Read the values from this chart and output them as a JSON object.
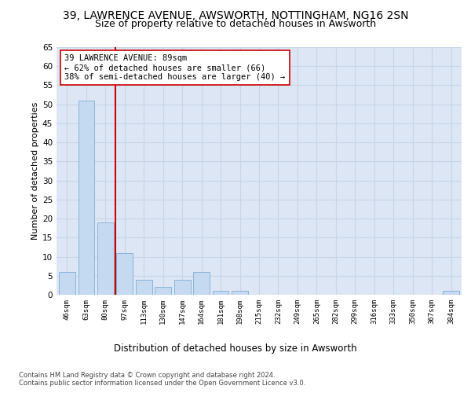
{
  "title1": "39, LAWRENCE AVENUE, AWSWORTH, NOTTINGHAM, NG16 2SN",
  "title2": "Size of property relative to detached houses in Awsworth",
  "xlabel": "Distribution of detached houses by size in Awsworth",
  "ylabel": "Number of detached properties",
  "footer1": "Contains HM Land Registry data © Crown copyright and database right 2024.",
  "footer2": "Contains public sector information licensed under the Open Government Licence v3.0.",
  "bar_labels": [
    "46sqm",
    "63sqm",
    "80sqm",
    "97sqm",
    "113sqm",
    "130sqm",
    "147sqm",
    "164sqm",
    "181sqm",
    "198sqm",
    "215sqm",
    "232sqm",
    "249sqm",
    "265sqm",
    "282sqm",
    "299sqm",
    "316sqm",
    "333sqm",
    "350sqm",
    "367sqm",
    "384sqm"
  ],
  "bar_values": [
    6,
    51,
    19,
    11,
    4,
    2,
    4,
    6,
    1,
    1,
    0,
    0,
    0,
    0,
    0,
    0,
    0,
    0,
    0,
    0,
    1
  ],
  "bar_color": "#c5d9f0",
  "bar_edge_color": "#8ab4d8",
  "vline_color": "#cc0000",
  "annotation_text": "39 LAWRENCE AVENUE: 89sqm\n← 62% of detached houses are smaller (66)\n38% of semi-detached houses are larger (40) →",
  "annotation_box_color": "#ffffff",
  "annotation_box_edge": "#cc0000",
  "ylim": [
    0,
    65
  ],
  "yticks": [
    0,
    5,
    10,
    15,
    20,
    25,
    30,
    35,
    40,
    45,
    50,
    55,
    60,
    65
  ],
  "grid_color": "#c8d4e8",
  "bg_color": "#dce6f5",
  "fig_bg_color": "#ffffff",
  "title1_fontsize": 10,
  "title2_fontsize": 9,
  "xlabel_fontsize": 8.5,
  "ylabel_fontsize": 8
}
